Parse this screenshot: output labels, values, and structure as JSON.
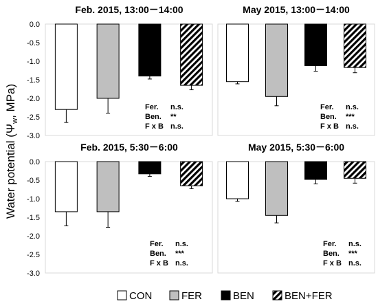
{
  "y_axis_label": "Water potential (Ψ",
  "y_axis_label_sub": "w",
  "y_axis_label_unit": ", MPa)",
  "legend": {
    "items": [
      {
        "label": "CON",
        "fill": "#ffffff"
      },
      {
        "label": "FER",
        "fill": "#bfbfbf"
      },
      {
        "label": "BEN",
        "fill": "#000000"
      },
      {
        "label": "BEN+FER",
        "fill": "hatch"
      }
    ]
  },
  "chart_data": [
    {
      "type": "bar",
      "title": "Feb. 2015, 13:00－14:00",
      "categories": [
        "CON",
        "FER",
        "BEN",
        "BEN+FER"
      ],
      "values": [
        -2.3,
        -2.0,
        -1.4,
        -1.65
      ],
      "errors": [
        0.35,
        0.4,
        0.08,
        0.12
      ],
      "ylim": [
        -3.0,
        0.0
      ],
      "yticks": [
        "0.0",
        "-0.5",
        "-1.0",
        "-1.5",
        "-2.0",
        "-2.5",
        "-3.0"
      ],
      "stats": [
        [
          "Fer.",
          "n.s."
        ],
        [
          "Ben.",
          "**"
        ],
        [
          "F x B",
          "n.s."
        ]
      ]
    },
    {
      "type": "bar",
      "title": "May 2015, 13:00－14:00",
      "categories": [
        "CON",
        "FER",
        "BEN",
        "BEN+FER"
      ],
      "values": [
        -1.55,
        -1.95,
        -1.12,
        -1.17
      ],
      "errors": [
        0.06,
        0.25,
        0.15,
        0.14
      ],
      "ylim": [
        -3.0,
        0.0
      ],
      "yticks": [],
      "stats": [
        [
          "Fer.",
          "n.s."
        ],
        [
          "Ben.",
          "***"
        ],
        [
          "F x B",
          "n.s."
        ]
      ]
    },
    {
      "type": "bar",
      "title": "Feb. 2015, 5:30－6:00",
      "categories": [
        "CON",
        "FER",
        "BEN",
        "BEN+FER"
      ],
      "values": [
        -1.35,
        -1.35,
        -0.33,
        -0.65
      ],
      "errors": [
        0.38,
        0.42,
        0.07,
        0.08
      ],
      "ylim": [
        -3.0,
        0.0
      ],
      "yticks": [
        "0.0",
        "-0.5",
        "-1.0",
        "-1.5",
        "-2.0",
        "-2.5",
        "-3.0"
      ],
      "stats": [
        [
          "Fer.",
          "n.s."
        ],
        [
          "Ben.",
          "***"
        ],
        [
          "F x B",
          "n.s."
        ]
      ]
    },
    {
      "type": "bar",
      "title": "May 2015, 5:30－6:00",
      "categories": [
        "CON",
        "FER",
        "BEN",
        "BEN+FER"
      ],
      "values": [
        -1.0,
        -1.45,
        -0.48,
        -0.45
      ],
      "errors": [
        0.07,
        0.2,
        0.12,
        0.13
      ],
      "ylim": [
        -3.0,
        0.0
      ],
      "yticks": [],
      "stats": [
        [
          "Fer.",
          "n.s."
        ],
        [
          "Ben.",
          "***"
        ],
        [
          "F x B",
          "n.s."
        ]
      ]
    }
  ]
}
